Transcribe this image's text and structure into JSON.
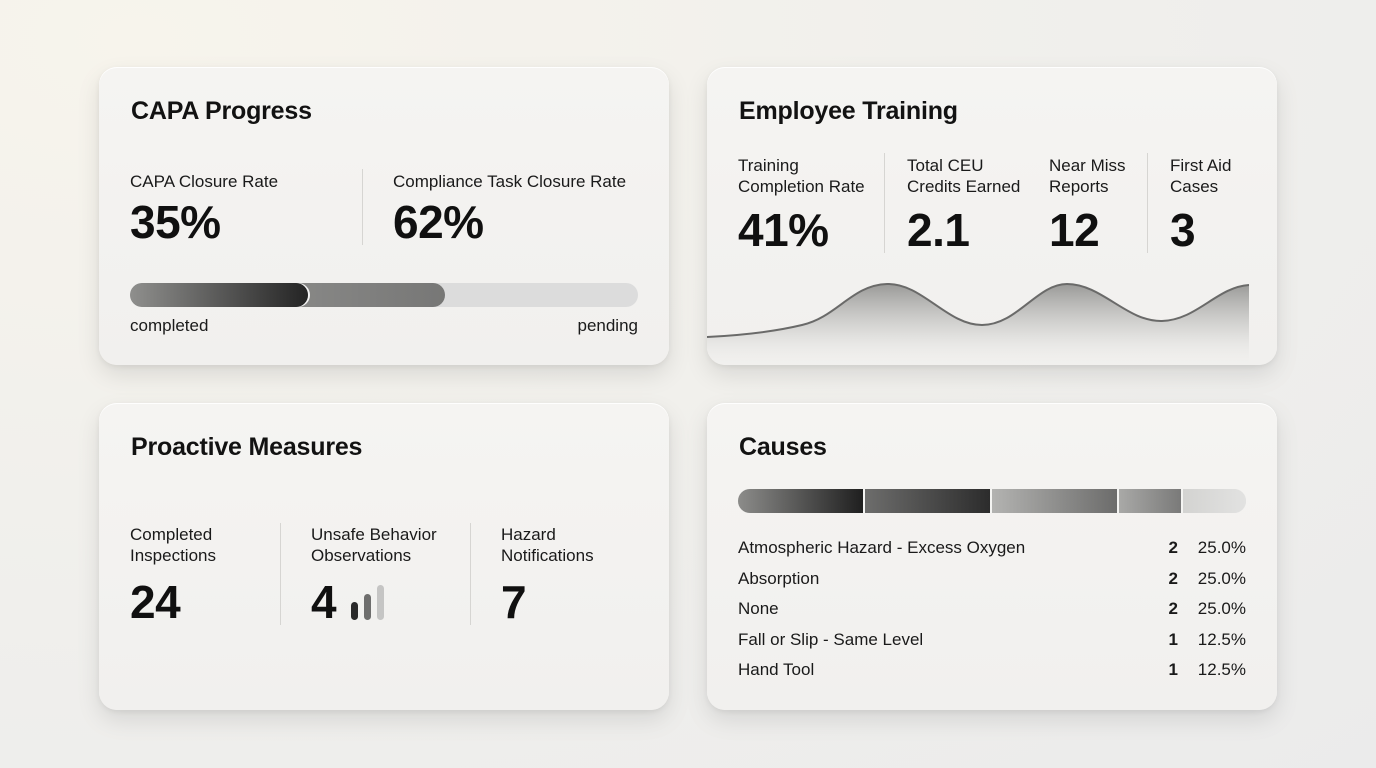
{
  "capa": {
    "title": "CAPA Progress",
    "closure_rate_label": "CAPA Closure Rate",
    "closure_rate_value": "35%",
    "compliance_label": "Compliance Task Closure Rate",
    "compliance_value": "62%",
    "progress": {
      "completed_fraction": 0.35,
      "pending_fraction": 0.62
    },
    "completed_label": "completed",
    "pending_label": "pending"
  },
  "training": {
    "title": "Employee Training",
    "metrics": [
      {
        "label_line1": "Training",
        "label_line2": "Completion Rate",
        "value": "41%"
      },
      {
        "label_line1": "Total CEU",
        "label_line2": "Credits Earned",
        "value": "2.1"
      },
      {
        "label_line1": "Near Miss",
        "label_line2": "Reports",
        "value": "12"
      },
      {
        "label_line1": "First Aid",
        "label_line2": "Cases",
        "value": "3"
      }
    ]
  },
  "proactive": {
    "title": "Proactive Measures",
    "metrics": [
      {
        "label_line1": "Completed",
        "label_line2": "Inspections",
        "value": "24"
      },
      {
        "label_line1": "Unsafe Behavior",
        "label_line2": "Observations",
        "value": "4"
      },
      {
        "label_line1": "Hazard",
        "label_line2": "Notifications",
        "value": "7"
      }
    ]
  },
  "causes": {
    "title": "Causes",
    "rows": [
      {
        "name": "Atmospheric Hazard - Excess Oxygen",
        "count": "2",
        "percent": "25.0%",
        "fraction": 0.25,
        "color_start": "#8c8c8a",
        "color_end": "#1f1f1f"
      },
      {
        "name": "Absorption",
        "count": "2",
        "percent": "25.0%",
        "fraction": 0.25,
        "color_start": "#6d6d6c",
        "color_end": "#2c2c2c"
      },
      {
        "name": "None",
        "count": "2",
        "percent": "25.0%",
        "fraction": 0.25,
        "color_start": "#b3b3b1",
        "color_end": "#6c6c6b"
      },
      {
        "name": "Fall or Slip - Same Level",
        "count": "1",
        "percent": "12.5%",
        "fraction": 0.125,
        "color_start": "#a9a9a7",
        "color_end": "#7a7a79"
      },
      {
        "name": "Hand Tool",
        "count": "1",
        "percent": "12.5%",
        "fraction": 0.125,
        "color_start": "#d3d3d1",
        "color_end": "#e2e2e1"
      }
    ]
  }
}
